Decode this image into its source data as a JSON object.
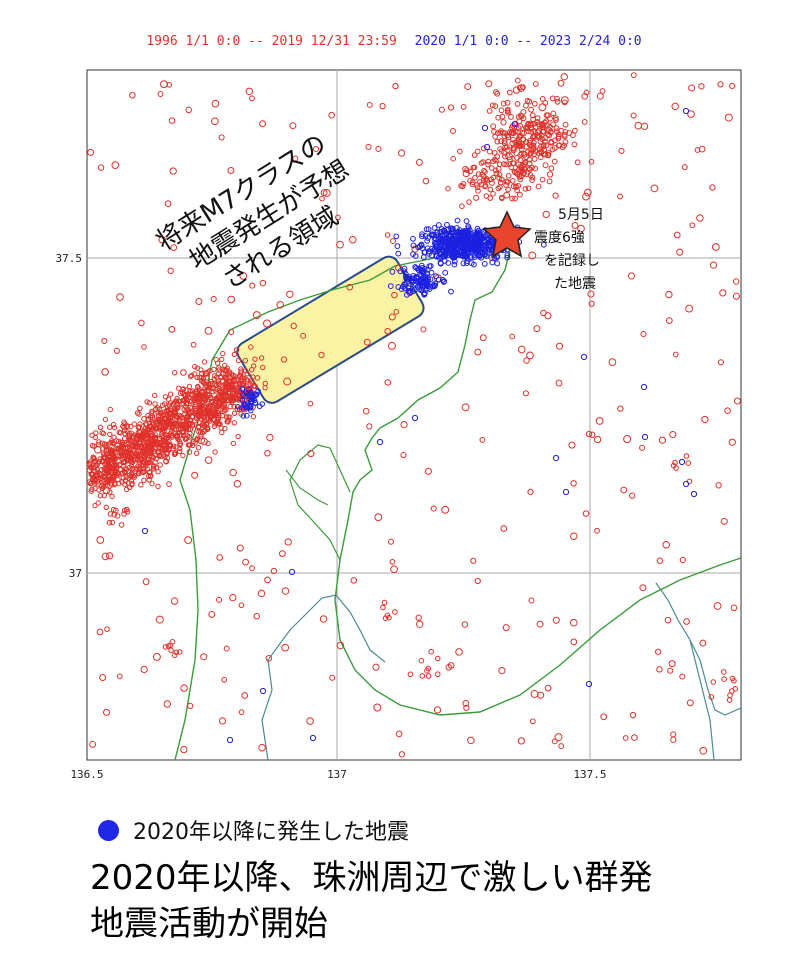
{
  "header": {
    "period_red": "1996 1/1 0:0 -- 2019 12/31 23:59",
    "period_blue": "2020  1/1  0:0 -- 2023 2/24  0:0"
  },
  "map": {
    "axis_x_ticks": [
      "136.5",
      "137",
      "137.5"
    ],
    "axis_y_ticks": [
      "37.5",
      "37"
    ],
    "colors": {
      "pre2020_quakes": "#e0312a",
      "post2020_quakes": "#1c20e0",
      "coastline": "#3a9b3a",
      "boundary_line": "#4a8a94",
      "forecast_area": "#fbf3a4",
      "forecast_border": "#2a4a8a",
      "epicenter_star": "#e9442e"
    },
    "epicenter_icon": "star-icon",
    "callout_lines": [
      "5月5日",
      "震度6強",
      "を記録し",
      "た地震"
    ],
    "forecast_lines": [
      "将来M7クラスの",
      "地震発生が予想",
      "される領域"
    ]
  },
  "legend": {
    "dot_color": "#2028e6",
    "label": "2020年以降に発生した地震"
  },
  "headline": {
    "line1": "2020年以降、珠洲周辺で激しい群発",
    "line2": "地震活動が開始"
  }
}
